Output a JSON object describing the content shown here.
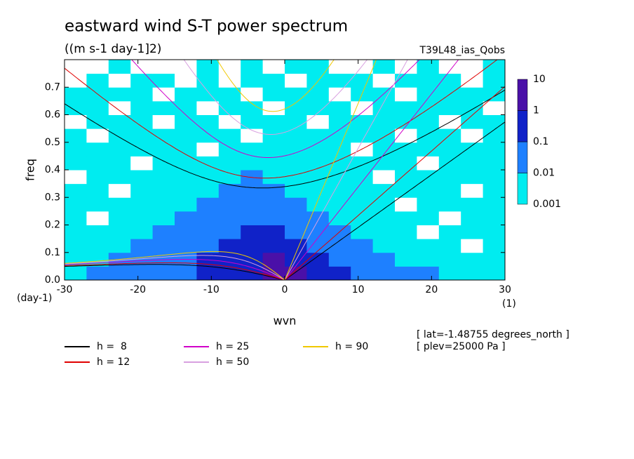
{
  "chart_data": {
    "type": "contour",
    "title": "eastward wind S-T power spectrum",
    "subtitle": "((m s-1 day-1]2)",
    "run_label": "T39L48_ias_Qobs",
    "ylabel": "freq",
    "yunit": "(day-1)",
    "xlabel": "wvn",
    "xunit": "(1)",
    "notes": [
      "[ lat=-1.48755 degrees_north ]",
      "[ plev=25000 Pa ]"
    ],
    "xlim": [
      -30,
      30
    ],
    "ylim": [
      0,
      0.8
    ],
    "xticks": [
      -30,
      -20,
      -10,
      0,
      10,
      20,
      30
    ],
    "yticks": [
      {
        "value": 0,
        "label": "0.0"
      },
      0.1,
      0.2,
      0.3,
      0.4,
      0.5,
      0.6,
      0.7
    ],
    "levels": [
      0.001,
      0.01,
      0.1,
      1,
      10
    ],
    "level_colors": [
      "#00ecf0",
      "#1e80ff",
      "#1022c8",
      "#4a10a8"
    ],
    "field": {
      "x": [
        -28.5,
        -25.5,
        -22.5,
        -19.5,
        -16.5,
        -13.5,
        -10.5,
        -7.5,
        -4.5,
        -1.5,
        1.5,
        4.5,
        7.5,
        10.5,
        13.5,
        16.5,
        19.5,
        22.5,
        25.5,
        28.5
      ],
      "y": [
        0.025,
        0.075,
        0.125,
        0.175,
        0.225,
        0.275,
        0.325,
        0.375,
        0.425,
        0.475,
        0.525,
        0.575,
        0.625,
        0.675,
        0.725,
        0.775
      ],
      "z": [
        [
          0.005,
          0.05,
          0.05,
          0.05,
          0.05,
          0.05,
          0.5,
          0.5,
          0.5,
          5,
          5,
          0.5,
          0.5,
          0.05,
          0.05,
          0.05,
          0.05,
          0.005,
          0.005,
          0.005
        ],
        [
          0.005,
          0.005,
          0.05,
          0.05,
          0.05,
          0.05,
          0.5,
          0.5,
          0.5,
          5,
          0.5,
          0.5,
          0.05,
          0.05,
          0.05,
          0.005,
          0.005,
          0.005,
          0.005,
          0.005
        ],
        [
          0.005,
          0.005,
          0.005,
          0.05,
          0.05,
          0.05,
          0.05,
          0.5,
          0.5,
          0.5,
          0.5,
          0.05,
          0.05,
          0.05,
          0.005,
          0.005,
          0.005,
          0.005,
          0,
          0.005
        ],
        [
          0.005,
          0.005,
          0.005,
          0.005,
          0.05,
          0.05,
          0.05,
          0.05,
          0.5,
          0.5,
          0.05,
          0.05,
          0.05,
          0.005,
          0.005,
          0.005,
          0,
          0.005,
          0.005,
          0.005
        ],
        [
          0.005,
          0,
          0.005,
          0.005,
          0.005,
          0.05,
          0.05,
          0.05,
          0.05,
          0.05,
          0.05,
          0.05,
          0.005,
          0.005,
          0.005,
          0.005,
          0.005,
          0,
          0.005,
          0.005
        ],
        [
          0.005,
          0.005,
          0.005,
          0.005,
          0.005,
          0.005,
          0.05,
          0.05,
          0.05,
          0.05,
          0.05,
          0.005,
          0.005,
          0.005,
          0.005,
          0,
          0.005,
          0.005,
          0.005,
          0.005
        ],
        [
          0.005,
          0.005,
          0,
          0.005,
          0.005,
          0.005,
          0.005,
          0.05,
          0.05,
          0.05,
          0.005,
          0.005,
          0.005,
          0.005,
          0.005,
          0.005,
          0.005,
          0.005,
          0,
          0.005
        ],
        [
          0,
          0.005,
          0.005,
          0.005,
          0.005,
          0.005,
          0.005,
          0.005,
          0.05,
          0.005,
          0.005,
          0.005,
          0.005,
          0.005,
          0,
          0.005,
          0.005,
          0.005,
          0.005,
          0.005
        ],
        [
          0.005,
          0.005,
          0.005,
          0,
          0.005,
          0.005,
          0.005,
          0.005,
          0.005,
          0.005,
          0.005,
          0.005,
          0.005,
          0.005,
          0.005,
          0.005,
          0,
          0.005,
          0.005,
          0.005
        ],
        [
          0.005,
          0.005,
          0.005,
          0.005,
          0.005,
          0.005,
          0,
          0.005,
          0.005,
          0.005,
          0.005,
          0.005,
          0.005,
          0,
          0.005,
          0.005,
          0.005,
          0.005,
          0.005,
          0.005
        ],
        [
          0.005,
          0,
          0.005,
          0.005,
          0.005,
          0.005,
          0.005,
          0.005,
          0,
          0.005,
          0.005,
          0.005,
          0.005,
          0.005,
          0.005,
          0,
          0.005,
          0.005,
          0,
          0.005
        ],
        [
          0,
          0.005,
          0.005,
          0.005,
          0,
          0.005,
          0.005,
          0,
          0.005,
          0.005,
          0.005,
          0,
          0.005,
          0.005,
          0.005,
          0.005,
          0.005,
          0,
          0.005,
          0.005
        ],
        [
          0.005,
          0.005,
          0,
          0.005,
          0.005,
          0.005,
          0,
          0.005,
          0.005,
          0,
          0.005,
          0.005,
          0.005,
          0,
          0.005,
          0.005,
          0.005,
          0.005,
          0.005,
          0
        ],
        [
          0.005,
          0.005,
          0.005,
          0.005,
          0,
          0.005,
          0.005,
          0.005,
          0,
          0.005,
          0.005,
          0.005,
          0,
          0.005,
          0.005,
          0,
          0.005,
          0.005,
          0.005,
          0.005
        ],
        [
          0,
          0.005,
          0,
          0.005,
          0.005,
          0,
          0.005,
          0,
          0.005,
          0.005,
          0,
          0.005,
          0.005,
          0.005,
          0,
          0.005,
          0.005,
          0.005,
          0,
          0.005
        ],
        [
          0,
          0,
          0.005,
          0,
          0,
          0,
          0.005,
          0,
          0.005,
          0,
          0.005,
          0.005,
          0,
          0,
          0.005,
          0,
          0.005,
          0,
          0,
          0.005
        ]
      ]
    },
    "series": [
      {
        "name": "h =  8",
        "depth": 8,
        "color": "#000000"
      },
      {
        "name": "h = 12",
        "depth": 12,
        "color": "#e00000"
      },
      {
        "name": "h = 25",
        "depth": 25,
        "color": "#d000c8"
      },
      {
        "name": "h = 50",
        "depth": 50,
        "color": "#d8a0e0"
      },
      {
        "name": "h = 90",
        "depth": 90,
        "color": "#f0c800"
      }
    ]
  }
}
